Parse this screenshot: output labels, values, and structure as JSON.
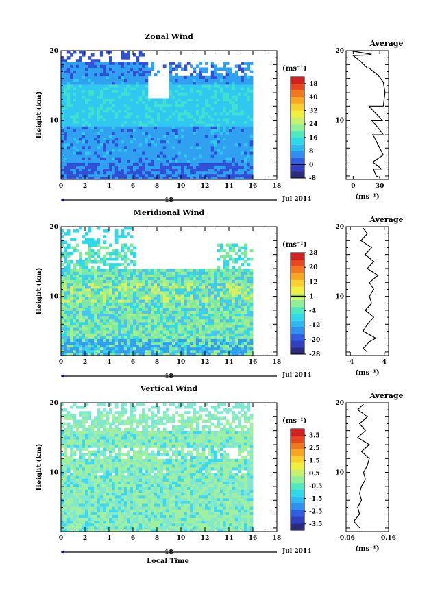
{
  "figure": {
    "date_label": "Jul 2014",
    "day_label": "18",
    "xlabel": "Local Time"
  },
  "chart_data": [
    {
      "type": "heatmap",
      "title": "Zonal Wind",
      "ylabel": "Height (km)",
      "xlim": [
        0,
        18
      ],
      "ylim": [
        1.5,
        20
      ],
      "x_ticks": [
        "0",
        "2",
        "4",
        "6",
        "8",
        "10",
        "12",
        "14",
        "16",
        "18"
      ],
      "y_ticks": [
        "10",
        "20"
      ],
      "data_x_range": [
        0,
        16
      ],
      "colorbar": {
        "unit": "(ms⁻¹)",
        "range": [
          -8,
          52
        ],
        "ticks": [
          "48",
          "40",
          "32",
          "24",
          "16",
          "8",
          "0",
          "-8"
        ],
        "highlight": "0"
      },
      "average_profile": {
        "title": "Average",
        "xlabel": "(ms⁻¹)",
        "x_ticks": [
          "0",
          "30"
        ],
        "y_ticks": [
          "10",
          "20"
        ],
        "xlim": [
          -8,
          40
        ],
        "points": [
          [
            20,
            19.5
          ],
          [
            18.5,
            19.4
          ],
          [
            18,
            17.5
          ],
          [
            18,
            12
          ],
          [
            21,
            10
          ],
          [
            22,
            8
          ],
          [
            22,
            4
          ],
          [
            23,
            3
          ],
          [
            26,
            2
          ],
          [
            30,
            1.8
          ],
          [
            32,
            3
          ],
          [
            34,
            5
          ],
          [
            34,
            8
          ],
          [
            33,
            10
          ],
          [
            34,
            12
          ],
          [
            36,
            14
          ],
          [
            34,
            15.5
          ],
          [
            28,
            16.5
          ],
          [
            16,
            17.5
          ],
          [
            8,
            18.5
          ],
          [
            0,
            19.3
          ],
          [
            -4,
            20
          ]
        ]
      }
    },
    {
      "type": "heatmap",
      "title": "Meridional Wind",
      "ylabel": "Height (km)",
      "xlim": [
        0,
        18
      ],
      "ylim": [
        1.5,
        20
      ],
      "x_ticks": [
        "0",
        "2",
        "4",
        "6",
        "8",
        "10",
        "12",
        "14",
        "16",
        "18"
      ],
      "y_ticks": [
        "10",
        "20"
      ],
      "data_x_range": [
        0,
        16
      ],
      "colorbar": {
        "unit": "(ms⁻¹)",
        "range": [
          -28,
          28
        ],
        "ticks": [
          "28",
          "20",
          "12",
          "4",
          "-4",
          "-12",
          "-20",
          "-28"
        ],
        "highlight": "4"
      },
      "average_profile": {
        "title": "Average",
        "xlabel": "(ms⁻¹)",
        "x_ticks": [
          "-4",
          "4"
        ],
        "y_ticks": [
          "10",
          "20"
        ],
        "xlim": [
          -5,
          5
        ],
        "points": [
          [
            0,
            2
          ],
          [
            -1,
            2.5
          ],
          [
            0.5,
            3.5
          ],
          [
            2,
            4
          ],
          [
            -1,
            5
          ],
          [
            0,
            6
          ],
          [
            1.5,
            7
          ],
          [
            -0.5,
            8
          ],
          [
            1,
            9
          ],
          [
            0.5,
            10
          ],
          [
            1.5,
            11
          ],
          [
            0.5,
            12
          ],
          [
            2.5,
            13
          ],
          [
            0,
            14
          ],
          [
            1.5,
            15
          ],
          [
            -0.5,
            16
          ],
          [
            1,
            17
          ],
          [
            -1.5,
            18
          ],
          [
            0,
            19
          ],
          [
            -1,
            19.8
          ]
        ]
      }
    },
    {
      "type": "heatmap",
      "title": "Vertical Wind",
      "ylabel": "Height (km)",
      "xlim": [
        0,
        18
      ],
      "ylim": [
        1.5,
        20
      ],
      "x_ticks": [
        "0",
        "2",
        "4",
        "6",
        "8",
        "10",
        "12",
        "14",
        "16",
        "18"
      ],
      "y_ticks": [
        "10",
        "20"
      ],
      "data_x_range": [
        0,
        16
      ],
      "colorbar": {
        "unit": "(ms⁻¹)",
        "range": [
          -4,
          4
        ],
        "ticks": [
          "3.5",
          "2.5",
          "1.5",
          "0.5",
          "-0.5",
          "-1.5",
          "-2.5",
          "-3.5"
        ],
        "highlight": ""
      },
      "average_profile": {
        "title": "Average",
        "xlabel": "(ms⁻¹)",
        "x_ticks": [
          "-0.06",
          "0.16"
        ],
        "y_ticks": [
          "10",
          "20"
        ],
        "xlim": [
          -0.06,
          0.16
        ],
        "points": [
          [
            0.01,
            2
          ],
          [
            -0.02,
            3
          ],
          [
            0.01,
            4
          ],
          [
            0.0,
            5
          ],
          [
            0.02,
            6
          ],
          [
            0.01,
            7
          ],
          [
            0.02,
            8
          ],
          [
            0.04,
            9
          ],
          [
            0.03,
            10
          ],
          [
            0.05,
            11
          ],
          [
            0.06,
            12
          ],
          [
            0.02,
            13
          ],
          [
            0.06,
            14
          ],
          [
            0.0,
            15
          ],
          [
            0.04,
            16
          ],
          [
            0.01,
            17
          ],
          [
            0.05,
            18
          ],
          [
            0.0,
            19
          ],
          [
            0.03,
            19.8
          ]
        ]
      }
    }
  ]
}
